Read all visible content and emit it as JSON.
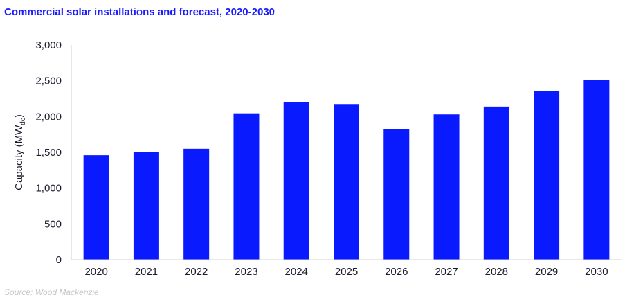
{
  "title": "Commercial solar installations and forecast, 2020-2030",
  "source": "Source: Wood Mackenzie",
  "chart_data": {
    "type": "bar",
    "title": "Commercial solar installations and forecast, 2020-2030",
    "categories": [
      "2020",
      "2021",
      "2022",
      "2023",
      "2024",
      "2025",
      "2026",
      "2027",
      "2028",
      "2029",
      "2030"
    ],
    "values": [
      1460,
      1500,
      1550,
      2045,
      2200,
      2175,
      1825,
      2030,
      2140,
      2355,
      2515
    ],
    "xlabel": "",
    "ylabel_main": "Capacity (MW",
    "ylabel_sub": "dc",
    "ylabel_close": ")",
    "ylim": [
      0,
      3000
    ],
    "yticks": [
      0,
      500,
      1000,
      1500,
      2000,
      2500,
      3000
    ],
    "ytick_labels": [
      "0",
      "500",
      "1,000",
      "1,500",
      "2,000",
      "2,500",
      "3,000"
    ],
    "grid": false,
    "bar_color": "#0a1aff",
    "axis_color": "#1a1a2e"
  }
}
